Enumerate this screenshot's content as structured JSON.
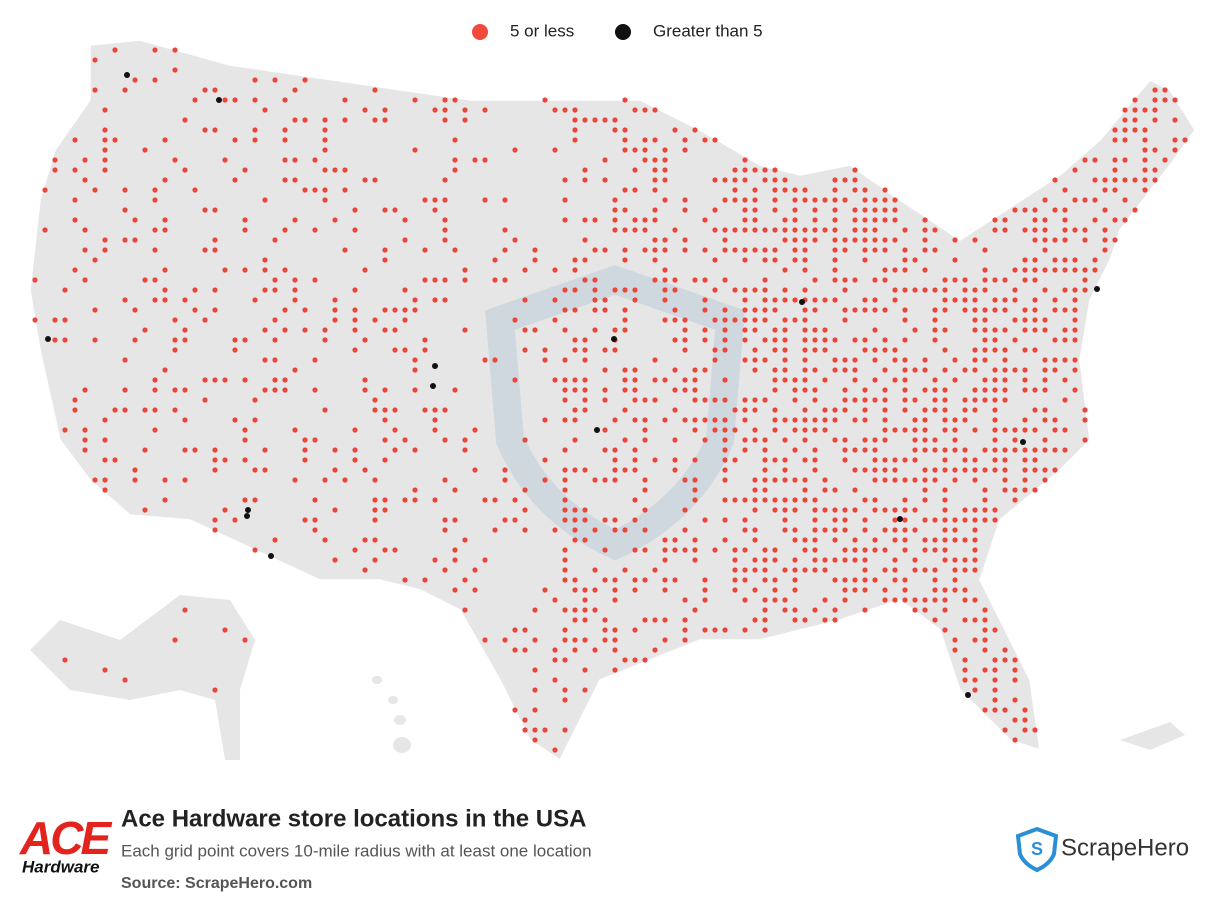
{
  "legend": {
    "items": [
      "5 or less",
      "Greater than 5"
    ]
  },
  "title": "Ace Hardware store locations in the USA",
  "subtitle": "Each grid point covers 10-mile radius with at least one location",
  "source": "Source: ScrapeHero.com",
  "logo": {
    "brand": "ACE",
    "tagline": "Hardware"
  },
  "credit": "ScrapeHero"
}
